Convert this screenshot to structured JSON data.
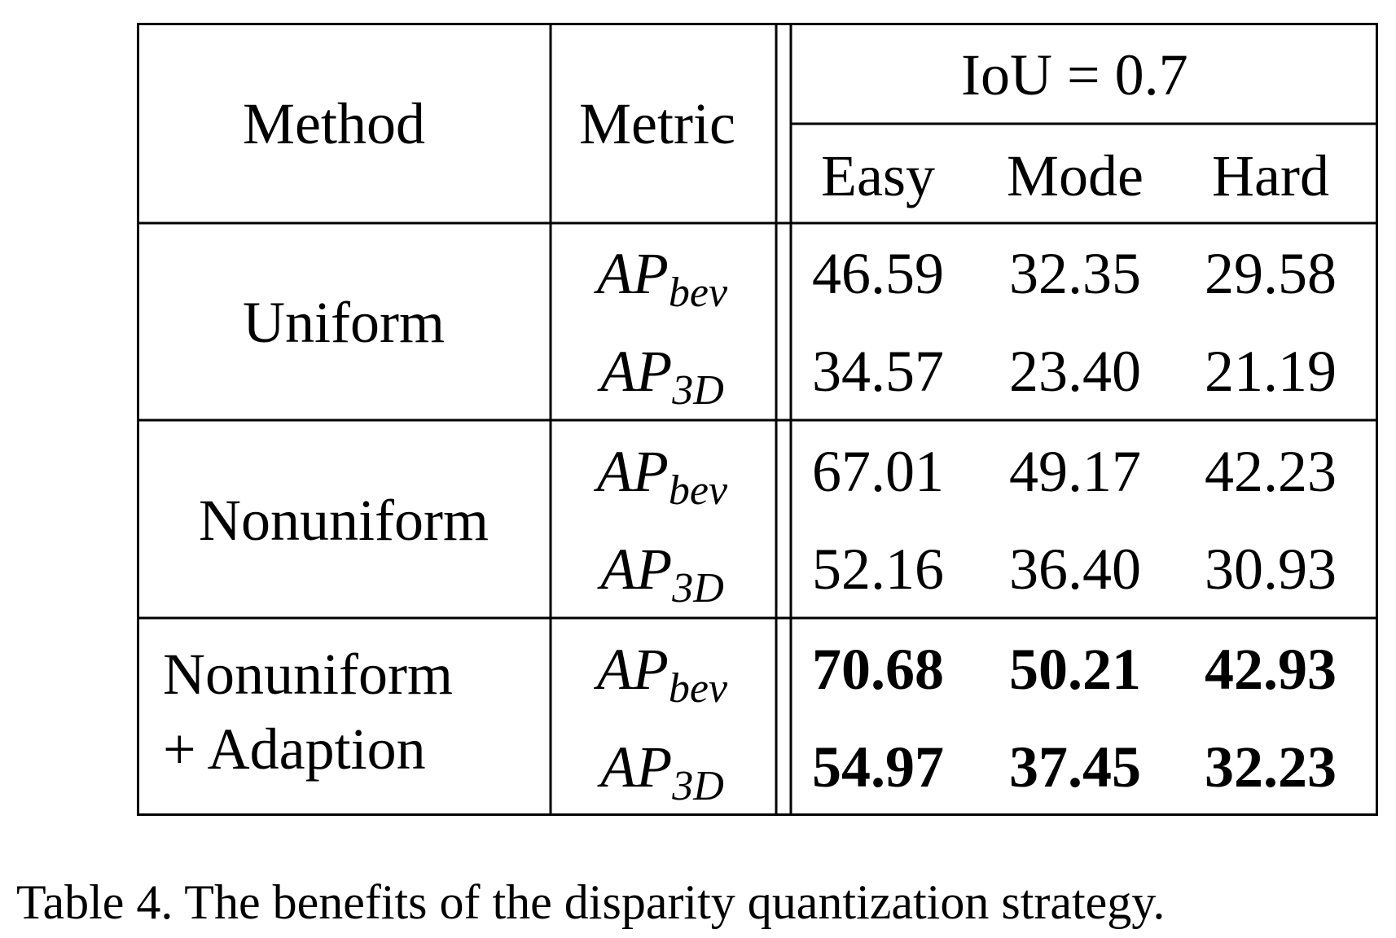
{
  "table": {
    "headers": {
      "method": "Method",
      "metric": "Metric",
      "group": "IoU = 0.7",
      "columns": [
        "Easy",
        "Mode",
        "Hard"
      ]
    },
    "rows": [
      {
        "method": "Uniform",
        "metrics": [
          {
            "base": "AP",
            "sub": "bev",
            "values": [
              "46.59",
              "32.35",
              "29.58"
            ]
          },
          {
            "base": "AP",
            "sub": "3D",
            "values": [
              "34.57",
              "23.40",
              "21.19"
            ]
          }
        ]
      },
      {
        "method": "Nonuniform",
        "metrics": [
          {
            "base": "AP",
            "sub": "bev",
            "values": [
              "67.01",
              "49.17",
              "42.23"
            ]
          },
          {
            "base": "AP",
            "sub": "3D",
            "values": [
              "52.16",
              "36.40",
              "30.93"
            ]
          }
        ]
      },
      {
        "method_lines": [
          "Nonuniform",
          "+ Adaption"
        ],
        "metrics": [
          {
            "base": "AP",
            "sub": "bev",
            "values": [
              "70.68",
              "50.21",
              "42.93"
            ]
          },
          {
            "base": "AP",
            "sub": "3D",
            "values": [
              "54.97",
              "37.45",
              "32.23"
            ]
          }
        ]
      }
    ]
  },
  "caption": "Table 4. The benefits of the disparity quantization strategy."
}
